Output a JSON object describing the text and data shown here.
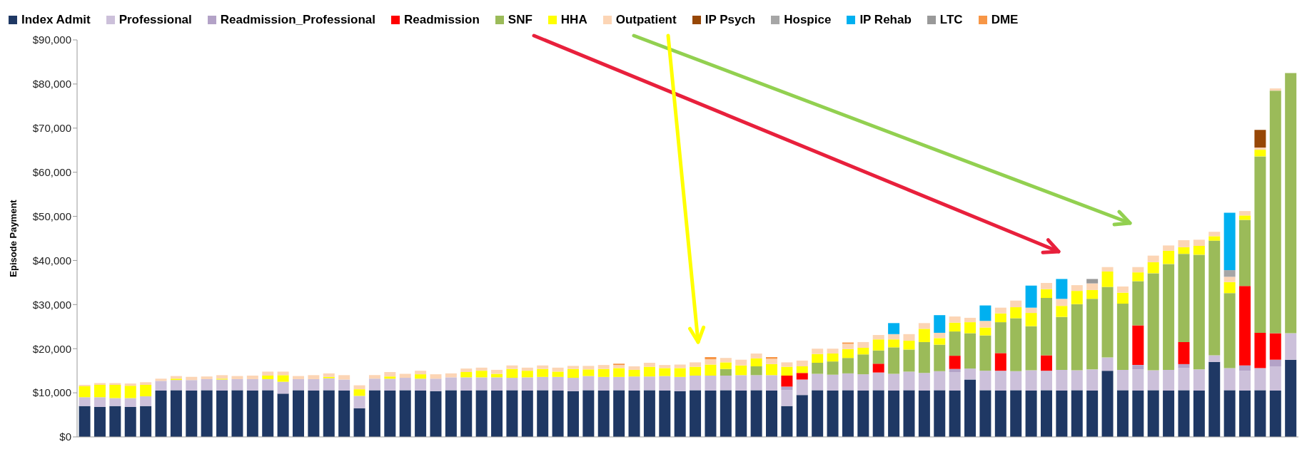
{
  "chart_data": {
    "type": "bar",
    "stacked": true,
    "ylabel": "Episode Payment",
    "legend": "top",
    "tick_labels": "y",
    "categories": [
      null,
      null,
      null,
      null,
      null,
      null,
      null,
      null,
      null,
      null,
      null,
      null,
      null,
      null,
      null,
      null,
      null,
      null,
      null,
      null,
      null,
      null,
      null,
      null,
      null,
      null,
      null,
      null,
      null,
      null,
      null,
      null,
      null,
      null,
      null,
      null,
      null,
      null,
      null,
      null,
      null,
      null,
      null,
      null,
      null,
      null,
      null,
      null,
      null,
      null,
      null,
      null,
      null,
      null,
      null,
      null,
      null,
      null,
      null,
      null,
      null,
      null,
      null,
      null,
      null,
      null,
      null,
      null,
      null,
      null,
      null,
      null,
      null,
      null,
      null,
      null,
      null,
      null,
      null,
      null
    ],
    "ylim": [
      0,
      90000
    ],
    "yticks": [
      {
        "value": 0,
        "label": "$0"
      },
      {
        "value": 10000,
        "label": "$10,000"
      },
      {
        "value": 20000,
        "label": "$20,000"
      },
      {
        "value": 30000,
        "label": "$30,000"
      },
      {
        "value": 40000,
        "label": "$40,000"
      },
      {
        "value": 50000,
        "label": "$50,000"
      },
      {
        "value": 60000,
        "label": "$60,000"
      },
      {
        "value": 70000,
        "label": "$70,000"
      },
      {
        "value": 80000,
        "label": "$80,000"
      },
      {
        "value": 90000,
        "label": "$90,000"
      }
    ],
    "series": [
      {
        "name": "Index Admit",
        "color": "#1f3864",
        "values": [
          7000,
          6800,
          7000,
          6800,
          7000,
          10500,
          10600,
          10500,
          10600,
          10500,
          10600,
          10500,
          10600,
          9800,
          10600,
          10500,
          10600,
          10500,
          6500,
          10600,
          10500,
          10600,
          10500,
          10400,
          10600,
          10500,
          10600,
          10500,
          10600,
          10500,
          10600,
          10500,
          10400,
          10600,
          10500,
          10600,
          10500,
          10600,
          10500,
          10400,
          10600,
          10500,
          10600,
          10500,
          10600,
          10500,
          7000,
          9500,
          10600,
          10500,
          10600,
          10500,
          10600,
          10500,
          10600,
          10500,
          10600,
          10500,
          13000,
          10600,
          10500,
          10600,
          10500,
          10600,
          10500,
          10600,
          10500,
          15000,
          10600,
          10500,
          10600,
          10500,
          10600,
          10500,
          17000,
          10600,
          10500,
          10600,
          10500,
          17500
        ]
      },
      {
        "name": "Professional",
        "color": "#ccc0da",
        "values": [
          2000,
          2200,
          1800,
          2000,
          2200,
          2200,
          2300,
          2400,
          2500,
          2500,
          2500,
          2600,
          2500,
          2700,
          2500,
          2600,
          2700,
          2500,
          2800,
          2600,
          2700,
          2800,
          2700,
          2800,
          2900,
          3000,
          2900,
          3000,
          2800,
          3000,
          3000,
          3100,
          3000,
          3200,
          3100,
          3000,
          3200,
          3100,
          3300,
          3200,
          3300,
          3400,
          3300,
          3500,
          3400,
          3500,
          3600,
          3500,
          3700,
          3600,
          3800,
          3700,
          4000,
          3800,
          4200,
          4000,
          4300,
          4200,
          2500,
          4400,
          4500,
          4300,
          4600,
          4400,
          4700,
          4500,
          4800,
          3000,
          4600,
          4800,
          4500,
          4700,
          5000,
          4800,
          1500,
          5000,
          4500,
          5000,
          5500,
          6000
        ]
      },
      {
        "name": "Readmission_Professional",
        "color": "#b3a2c7",
        "values": [
          0,
          0,
          0,
          0,
          0,
          0,
          0,
          0,
          0,
          0,
          0,
          0,
          0,
          0,
          0,
          0,
          0,
          0,
          0,
          0,
          0,
          0,
          0,
          0,
          0,
          0,
          0,
          0,
          0,
          0,
          0,
          0,
          0,
          0,
          0,
          0,
          0,
          0,
          0,
          0,
          0,
          0,
          0,
          0,
          0,
          0,
          800,
          0,
          0,
          0,
          0,
          0,
          0,
          0,
          0,
          0,
          0,
          700,
          0,
          0,
          0,
          0,
          0,
          0,
          0,
          0,
          0,
          0,
          0,
          1000,
          0,
          0,
          900,
          0,
          0,
          0,
          1200,
          0,
          1500,
          0
        ]
      },
      {
        "name": "Readmission",
        "color": "#ff0000",
        "values": [
          0,
          0,
          0,
          0,
          0,
          0,
          0,
          0,
          0,
          0,
          0,
          0,
          0,
          0,
          0,
          0,
          0,
          0,
          0,
          0,
          0,
          0,
          0,
          0,
          0,
          0,
          0,
          0,
          0,
          0,
          0,
          0,
          0,
          0,
          0,
          0,
          0,
          0,
          0,
          0,
          0,
          0,
          0,
          0,
          0,
          0,
          2500,
          1500,
          0,
          0,
          0,
          0,
          2000,
          0,
          0,
          0,
          0,
          3000,
          0,
          0,
          4000,
          0,
          0,
          3500,
          0,
          0,
          0,
          0,
          0,
          9000,
          0,
          0,
          5000,
          0,
          0,
          0,
          18000,
          8000,
          6000,
          0
        ]
      },
      {
        "name": "SNF",
        "color": "#9bbb59",
        "values": [
          0,
          0,
          0,
          0,
          0,
          0,
          0,
          0,
          0,
          0,
          0,
          0,
          0,
          0,
          0,
          0,
          0,
          0,
          0,
          0,
          0,
          0,
          0,
          0,
          0,
          0,
          0,
          0,
          0,
          0,
          0,
          0,
          0,
          0,
          0,
          0,
          0,
          0,
          0,
          0,
          0,
          0,
          1500,
          0,
          2000,
          0,
          0,
          0,
          2500,
          3000,
          3500,
          4500,
          3000,
          6000,
          5000,
          7000,
          6000,
          5500,
          8000,
          8000,
          7000,
          12000,
          10000,
          13000,
          12000,
          15000,
          16000,
          16000,
          15000,
          10000,
          22000,
          24000,
          20000,
          26000,
          26000,
          17000,
          15000,
          40000,
          55000,
          59000
        ]
      },
      {
        "name": "HHA",
        "color": "#ffff00",
        "values": [
          2500,
          2800,
          3000,
          2800,
          2600,
          0,
          300,
          0,
          0,
          200,
          0,
          0,
          800,
          1500,
          0,
          0,
          300,
          0,
          1500,
          0,
          500,
          0,
          1000,
          0,
          0,
          1200,
          1500,
          800,
          2000,
          1500,
          1800,
          1200,
          2000,
          1500,
          1800,
          2000,
          1500,
          2200,
          1800,
          2000,
          2000,
          2500,
          1500,
          2200,
          1800,
          2500,
          2000,
          1500,
          2000,
          1800,
          2000,
          1500,
          2500,
          1800,
          2000,
          3000,
          1500,
          2000,
          2500,
          1800,
          2000,
          2500,
          3000,
          2000,
          2500,
          3000,
          2000,
          3500,
          2500,
          2000,
          2500,
          3000,
          1500,
          2000,
          1000,
          2500,
          1000,
          1500,
          0,
          0
        ]
      },
      {
        "name": "Outpatient",
        "color": "#fcd5b5",
        "values": [
          300,
          400,
          400,
          500,
          600,
          500,
          600,
          700,
          600,
          800,
          700,
          800,
          900,
          800,
          700,
          900,
          800,
          1000,
          900,
          800,
          1000,
          900,
          800,
          1000,
          900,
          800,
          700,
          900,
          800,
          700,
          800,
          900,
          700,
          800,
          900,
          700,
          800,
          900,
          700,
          800,
          1000,
          1200,
          1000,
          1300,
          1100,
          1200,
          1000,
          1300,
          1200,
          1100,
          1200,
          1300,
          1000,
          1200,
          1500,
          1300,
          1200,
          1400,
          1000,
          1500,
          1300,
          1500,
          1200,
          1400,
          1600,
          1300,
          1500,
          1000,
          1400,
          1200,
          1500,
          1200,
          1600,
          1400,
          1000,
          1200,
          1000,
          500,
          500,
          0
        ]
      },
      {
        "name": "IP Psych",
        "color": "#974706",
        "values": [
          0,
          0,
          0,
          0,
          0,
          0,
          0,
          0,
          0,
          0,
          0,
          0,
          0,
          0,
          0,
          0,
          0,
          0,
          0,
          0,
          0,
          0,
          0,
          0,
          0,
          0,
          0,
          0,
          0,
          0,
          0,
          0,
          0,
          0,
          0,
          0,
          0,
          0,
          0,
          0,
          0,
          0,
          0,
          0,
          0,
          0,
          0,
          0,
          0,
          0,
          0,
          0,
          0,
          0,
          0,
          0,
          0,
          0,
          0,
          0,
          0,
          0,
          0,
          0,
          0,
          0,
          0,
          0,
          0,
          0,
          0,
          0,
          0,
          0,
          0,
          0,
          0,
          4000,
          0,
          0
        ]
      },
      {
        "name": "Hospice",
        "color": "#a6a6a6",
        "values": [
          0,
          0,
          0,
          0,
          0,
          0,
          0,
          0,
          0,
          0,
          0,
          0,
          0,
          0,
          0,
          0,
          0,
          0,
          0,
          0,
          0,
          0,
          0,
          0,
          0,
          0,
          0,
          0,
          0,
          0,
          0,
          0,
          0,
          0,
          0,
          0,
          0,
          0,
          0,
          0,
          0,
          0,
          0,
          0,
          0,
          0,
          0,
          0,
          0,
          0,
          0,
          0,
          0,
          0,
          0,
          0,
          0,
          0,
          0,
          0,
          0,
          0,
          0,
          0,
          0,
          0,
          0,
          0,
          0,
          0,
          0,
          0,
          0,
          0,
          0,
          1500,
          0,
          0,
          0,
          0
        ]
      },
      {
        "name": "IP Rehab",
        "color": "#00b0f0",
        "values": [
          0,
          0,
          0,
          0,
          0,
          0,
          0,
          0,
          0,
          0,
          0,
          0,
          0,
          0,
          0,
          0,
          0,
          0,
          0,
          0,
          0,
          0,
          0,
          0,
          0,
          0,
          0,
          0,
          0,
          0,
          0,
          0,
          0,
          0,
          0,
          0,
          0,
          0,
          0,
          0,
          0,
          0,
          0,
          0,
          0,
          0,
          0,
          0,
          0,
          0,
          0,
          0,
          0,
          2500,
          0,
          0,
          4000,
          0,
          0,
          3500,
          0,
          0,
          5000,
          0,
          4500,
          0,
          0,
          0,
          0,
          0,
          0,
          0,
          0,
          0,
          0,
          13000,
          0,
          0,
          0,
          0
        ]
      },
      {
        "name": "LTC",
        "color": "#999999",
        "values": [
          0,
          0,
          0,
          0,
          0,
          0,
          0,
          0,
          0,
          0,
          0,
          0,
          0,
          0,
          0,
          0,
          0,
          0,
          0,
          0,
          0,
          0,
          0,
          0,
          0,
          0,
          0,
          0,
          0,
          0,
          0,
          0,
          0,
          0,
          0,
          0,
          0,
          0,
          0,
          0,
          0,
          0,
          0,
          0,
          0,
          0,
          0,
          0,
          0,
          0,
          0,
          0,
          0,
          0,
          0,
          0,
          0,
          0,
          0,
          0,
          0,
          0,
          0,
          0,
          0,
          0,
          1000,
          0,
          0,
          0,
          0,
          0,
          0,
          0,
          0,
          0,
          0,
          0,
          0,
          0
        ]
      },
      {
        "name": "DME",
        "color": "#f79646",
        "values": [
          0,
          0,
          0,
          0,
          0,
          0,
          0,
          0,
          0,
          0,
          0,
          0,
          0,
          0,
          0,
          0,
          0,
          0,
          0,
          0,
          0,
          0,
          0,
          0,
          0,
          0,
          0,
          0,
          0,
          0,
          0,
          0,
          0,
          0,
          0,
          300,
          0,
          0,
          0,
          0,
          0,
          500,
          0,
          0,
          0,
          400,
          0,
          0,
          0,
          0,
          300,
          0,
          0,
          0,
          0,
          0,
          0,
          0,
          0,
          0,
          0,
          0,
          0,
          0,
          0,
          0,
          0,
          0,
          0,
          0,
          0,
          0,
          0,
          0,
          0,
          0,
          0,
          0,
          0,
          0
        ]
      }
    ]
  }
}
